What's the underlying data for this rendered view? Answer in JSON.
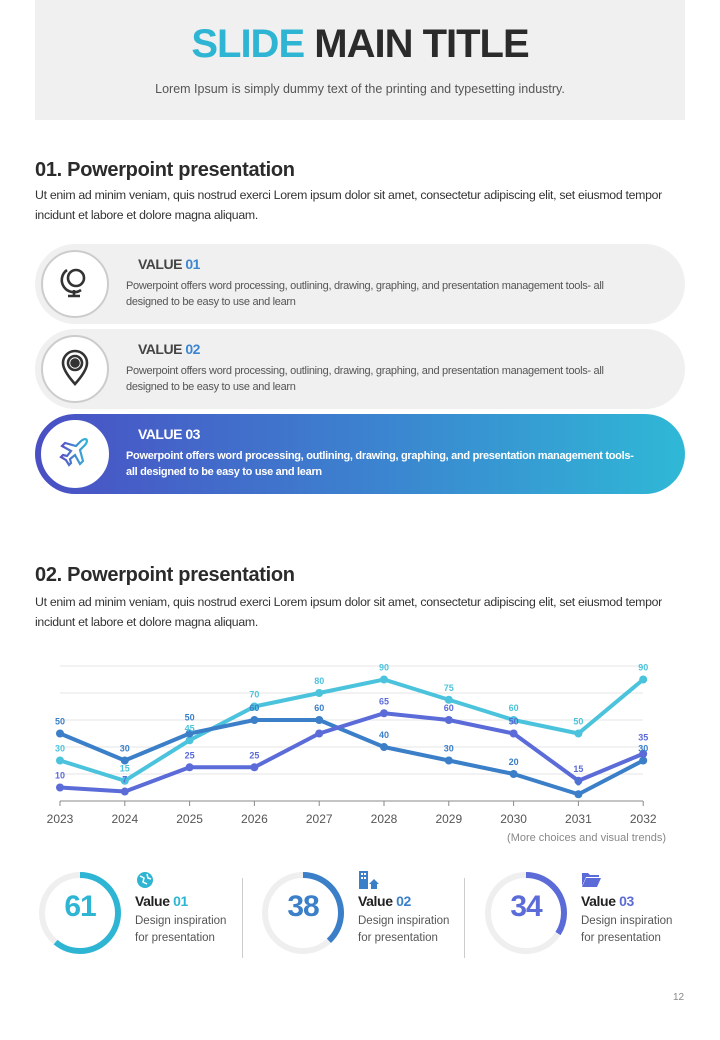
{
  "header": {
    "title_accent": "SLIDE",
    "title_rest": "MAIN TITLE",
    "subtitle": "Lorem Ipsum is simply dummy text of the printing and typesetting industry."
  },
  "section1": {
    "heading": "01. Powerpoint presentation",
    "paragraph": "Ut enim ad minim veniam, quis nostrud exerci  Lorem ipsum dolor sit amet, consectetur adipiscing elit, set eiusmod tempor incidunt et labore et dolore magna aliquam."
  },
  "cards": [
    {
      "label": "VALUE",
      "num": "01",
      "icon": "globe-icon",
      "desc": "Powerpoint offers word processing, outlining, drawing, graphing, and presentation management tools- all designed to be easy to use and learn",
      "active": false
    },
    {
      "label": "VALUE",
      "num": "02",
      "icon": "location-pin-icon",
      "desc": "Powerpoint offers word processing, outlining, drawing, graphing, and presentation management tools- all designed to be easy to use and learn",
      "active": false
    },
    {
      "label": "VALUE",
      "num": "03",
      "icon": "airplane-icon",
      "desc": "Powerpoint offers word processing, outlining, drawing, graphing, and presentation management tools- all designed to be easy to use and learn",
      "active": true
    }
  ],
  "section2": {
    "heading": "02. Powerpoint presentation",
    "paragraph": "Ut enim ad minim veniam, quis nostrud exerci  Lorem ipsum dolor sit amet, consectetur adipiscing elit, set eiusmod tempor incidunt et labore et dolore magna aliquam.",
    "note": "(More choices and visual trends)"
  },
  "chart_data": {
    "type": "line",
    "x": [
      "2023",
      "2024",
      "2025",
      "2026",
      "2027",
      "2028",
      "2029",
      "2030",
      "2031",
      "2032"
    ],
    "ylim": [
      0,
      100
    ],
    "grid": true,
    "series": [
      {
        "color": "#4cc3dc",
        "values": [
          30,
          15,
          45,
          70,
          80,
          90,
          75,
          60,
          50,
          90
        ],
        "labels": [
          "30",
          "15",
          "45",
          "70",
          "80",
          "90",
          "75",
          "60",
          "50",
          "90"
        ]
      },
      {
        "color": "#3a7fc8",
        "values": [
          50,
          30,
          50,
          60,
          60,
          40,
          30,
          20,
          5,
          30
        ],
        "labels": [
          "50",
          "30",
          "50",
          "60",
          "60",
          "40",
          "30",
          "20",
          "5",
          "30"
        ]
      },
      {
        "color": "#5b6bd8",
        "values": [
          10,
          7,
          25,
          25,
          50,
          65,
          60,
          50,
          15,
          35
        ],
        "labels": [
          "10",
          "7",
          "25",
          "25",
          "",
          "65",
          "60",
          "50",
          "15",
          "35"
        ]
      }
    ]
  },
  "gauges": [
    {
      "value": 61,
      "display": "61",
      "color": "#2fb5d4",
      "title": "Value",
      "num": "01",
      "line1": "Design inspiration",
      "line2": "for presentation",
      "icon": "globe-hand-icon"
    },
    {
      "value": 38,
      "display": "38",
      "color": "#3a7fc8",
      "title": "Value",
      "num": "02",
      "line1": "Design inspiration",
      "line2": "for presentation",
      "icon": "buildings-icon"
    },
    {
      "value": 34,
      "display": "34",
      "color": "#5b6bd8",
      "title": "Value",
      "num": "03",
      "line1": "Design inspiration",
      "line2": "for presentation",
      "icon": "folder-icon"
    }
  ],
  "page_number": "12"
}
